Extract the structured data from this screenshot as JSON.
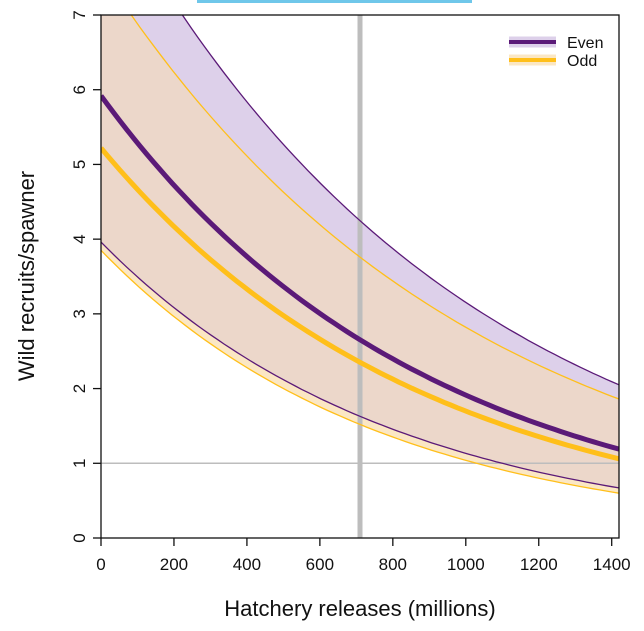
{
  "chart_data": {
    "type": "line",
    "xlabel": "Hatchery releases (millions)",
    "ylabel": "Wild recruits/spawner",
    "xlim": [
      0,
      1420
    ],
    "ylim": [
      0,
      7
    ],
    "x_ticks": [
      "0",
      "200",
      "400",
      "600",
      "800",
      "1000",
      "1200",
      "1400"
    ],
    "y_ticks": [
      "0",
      "1",
      "2",
      "3",
      "4",
      "5",
      "6",
      "7"
    ],
    "reference_lines": {
      "horizontal_y": 1,
      "vertical_x": 710
    },
    "legend_position": "top-right",
    "x": [
      0,
      710,
      1420
    ],
    "series": [
      {
        "name": "Even",
        "color": "#5b1a78",
        "band_fill": "#ddd0ea",
        "median": [
          5.92,
          2.65,
          1.19
        ],
        "lower": [
          3.96,
          1.98,
          0.67
        ],
        "upper": [
          8.8,
          3.6,
          2.05
        ]
      },
      {
        "name": "Odd",
        "color": "#ffbf1a",
        "band_fill": "#fbe7c4",
        "median": [
          5.22,
          2.33,
          1.06
        ],
        "lower": [
          3.85,
          1.8,
          0.6
        ],
        "upper": [
          7.6,
          3.1,
          1.86
        ]
      }
    ]
  },
  "overlap_fill": "#ecd7ca",
  "reference_line_color": "#bdbdbd",
  "axis_color": "#111111"
}
